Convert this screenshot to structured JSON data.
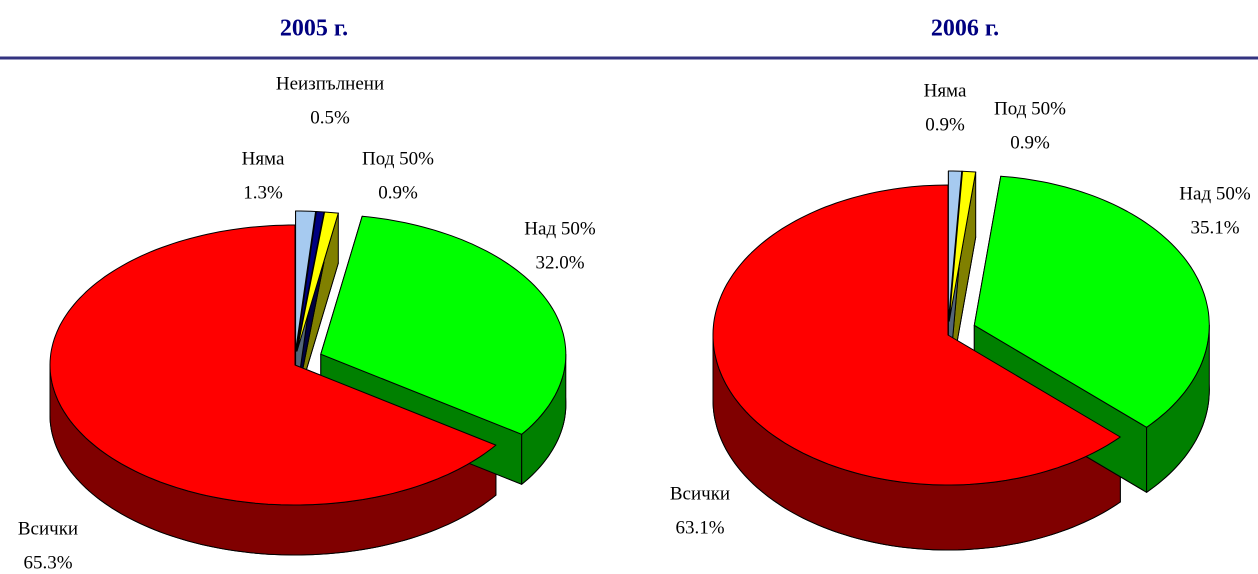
{
  "chart_data": [
    {
      "type": "pie",
      "title": "2005 г.",
      "categories": [
        "Няма",
        "Неизпълнени",
        "Под 50%",
        "Над 50%",
        "Всички"
      ],
      "values": [
        1.3,
        0.5,
        0.9,
        32.0,
        65.3
      ],
      "value_labels": [
        "1.3%",
        "0.5%",
        "0.9%",
        "32.0%",
        "65.3%"
      ],
      "colors": [
        "#a6caf0",
        "#000080",
        "#ffff00",
        "#00ff00",
        "#ff0000"
      ]
    },
    {
      "type": "pie",
      "title": "2006 г.",
      "categories": [
        "Няма",
        "Под 50%",
        "Над 50%",
        "Всички"
      ],
      "values": [
        0.9,
        0.9,
        35.1,
        63.1
      ],
      "value_labels": [
        "0.9%",
        "0.9%",
        "35.1%",
        "63.1%"
      ],
      "colors": [
        "#a6caf0",
        "#ffff00",
        "#00ff00",
        "#ff0000"
      ]
    }
  ]
}
